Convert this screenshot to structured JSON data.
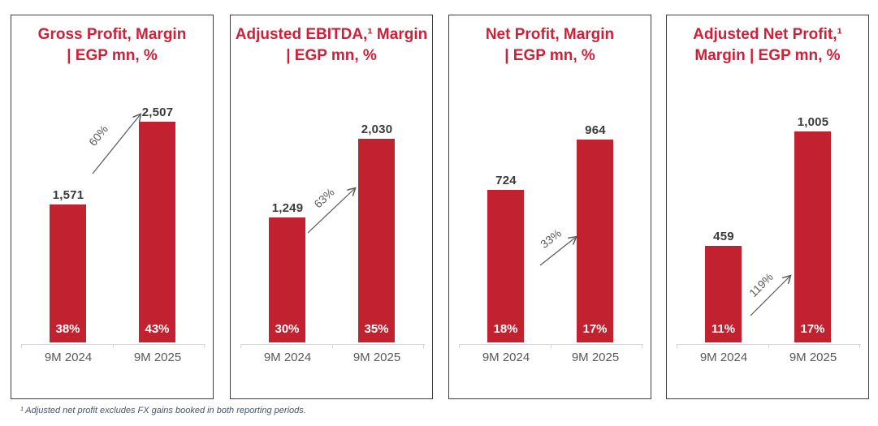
{
  "footnote": {
    "text": "¹ Adjusted net profit excludes FX gains booked in both reporting periods."
  },
  "colors": {
    "bar_red": "#c2212f",
    "title_red": "#ce2139",
    "value_label_dark": "#3b3b3b",
    "axis_text_gray": "#595959",
    "axis_line_gray": "#d6d6d6",
    "footnote_blue_gray": "#44546a",
    "panel_border": "#3f3f3f"
  },
  "chart_data": [
    {
      "type": "bar",
      "title": "Gross Profit, Margin | EGP mn, %",
      "title_lines": [
        "Gross Profit, Margin",
        "| EGP mn, %"
      ],
      "categories": [
        "9M 2024",
        "9M 2025"
      ],
      "values": [
        1571,
        2507
      ],
      "value_labels": [
        "1,571",
        "2,507"
      ],
      "margin_labels": [
        "38%",
        "43%"
      ],
      "growth_label": "60%",
      "unit": "EGP mn, %",
      "legend": "none",
      "gridlines": false
    },
    {
      "type": "bar",
      "title": "Adjusted EBITDA,¹ Margin | EGP mn, %",
      "title_lines": [
        "Adjusted EBITDA,¹ Margin",
        "| EGP mn, %"
      ],
      "categories": [
        "9M 2024",
        "9M 2025"
      ],
      "values": [
        1249,
        2030
      ],
      "value_labels": [
        "1,249",
        "2,030"
      ],
      "margin_labels": [
        "30%",
        "35%"
      ],
      "growth_label": "63%",
      "unit": "EGP mn, %",
      "legend": "none",
      "gridlines": false
    },
    {
      "type": "bar",
      "title": "Net Profit, Margin | EGP mn, %",
      "title_lines": [
        "Net Profit, Margin",
        "| EGP mn, %"
      ],
      "categories": [
        "9M 2024",
        "9M 2025"
      ],
      "values": [
        724,
        964
      ],
      "value_labels": [
        "724",
        "964"
      ],
      "margin_labels": [
        "18%",
        "17%"
      ],
      "growth_label": "33%",
      "unit": "EGP mn, %",
      "legend": "none",
      "gridlines": false
    },
    {
      "type": "bar",
      "title": "Adjusted Net Profit,¹ Margin | EGP mn, %",
      "title_lines": [
        "Adjusted Net Profit,¹",
        "Margin | EGP mn, %"
      ],
      "categories": [
        "9M 2024",
        "9M 2025"
      ],
      "values": [
        459,
        1005
      ],
      "value_labels": [
        "459",
        "1,005"
      ],
      "margin_labels": [
        "11%",
        "17%"
      ],
      "growth_label": "119%",
      "unit": "EGP mn, %",
      "legend": "none",
      "gridlines": false
    }
  ]
}
